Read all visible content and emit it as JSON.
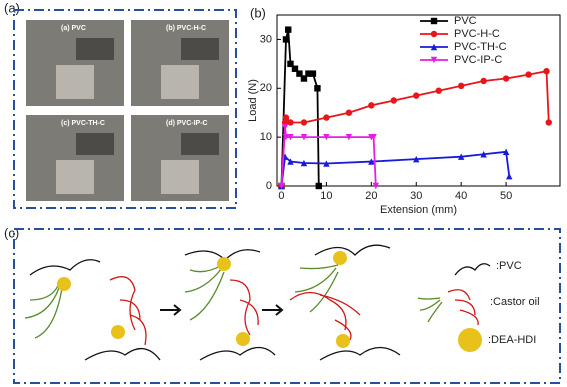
{
  "panel_a": {
    "label": "(a)",
    "photos": [
      {
        "caption": "(a)  PVC"
      },
      {
        "caption": "(b)  PVC-H-C"
      },
      {
        "caption": "(c)  PVC-TH-C"
      },
      {
        "caption": "(d)  PVC-IP-C"
      }
    ]
  },
  "chart_data": {
    "type": "line",
    "label": "(b)",
    "x_label": "Extension (mm)",
    "y_label": "Load (N)",
    "xlim": [
      -1,
      62
    ],
    "ylim": [
      0,
      35
    ],
    "xticks": [
      0,
      10,
      20,
      30,
      40,
      50
    ],
    "yticks": [
      0,
      10,
      20,
      30
    ],
    "legend": "top-right",
    "series": [
      {
        "name": "PVC",
        "color": "#000000",
        "marker": "square",
        "x": [
          0,
          1,
          1.5,
          2,
          3,
          4,
          5,
          6,
          7,
          8,
          8.3
        ],
        "values": [
          0,
          30,
          32,
          25,
          24,
          23,
          22,
          23,
          23,
          20,
          0
        ]
      },
      {
        "name": "PVC-H-C",
        "color": "#e8161b",
        "marker": "circle",
        "x": [
          0,
          0.8,
          1,
          2,
          5,
          10,
          15,
          20,
          25,
          30,
          35,
          40,
          45,
          50,
          55,
          59,
          59.5
        ],
        "values": [
          0,
          13,
          14,
          13,
          13,
          14,
          15,
          16.5,
          17.5,
          18.5,
          19.5,
          20.5,
          21.5,
          22,
          22.8,
          23.5,
          13
        ]
      },
      {
        "name": "PVC-TH-C",
        "color": "#1a1adb",
        "marker": "triangle",
        "x": [
          0,
          0.8,
          2,
          5,
          10,
          20,
          30,
          40,
          45,
          50,
          50.7
        ],
        "values": [
          0,
          6,
          5,
          4.7,
          4.6,
          5,
          5.5,
          6,
          6.5,
          7,
          2
        ]
      },
      {
        "name": "PVC-IP-C",
        "color": "#e41ee4",
        "marker": "triangle-down",
        "x": [
          0,
          0.8,
          1,
          2,
          5,
          10,
          15,
          20,
          20.5,
          21
        ],
        "values": [
          0,
          12,
          10,
          10,
          10,
          10,
          10,
          10,
          10,
          0
        ]
      }
    ]
  },
  "panel_c": {
    "label": "(c)",
    "legend": [
      ":PVC",
      ":Castor oil",
      ":DEA-HDI"
    ]
  }
}
